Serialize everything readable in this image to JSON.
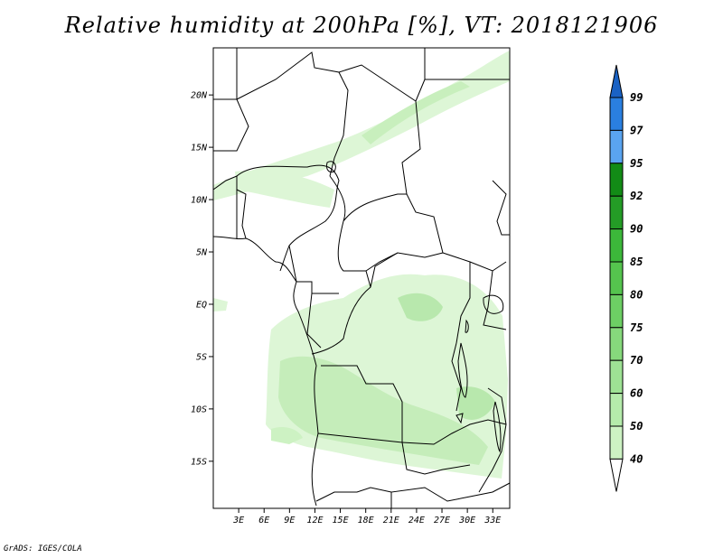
{
  "title": "Relative humidity at 200hPa [%], VT: 2018121906",
  "credit": "GrADS: IGES/COLA",
  "map": {
    "lat_labels": [
      "20N",
      "15N",
      "10N",
      "5N",
      "EQ",
      "5S",
      "10S",
      "15S"
    ],
    "lat_values": [
      20,
      15,
      10,
      5,
      0,
      -5,
      -10,
      -15
    ],
    "lon_labels": [
      "3E",
      "6E",
      "9E",
      "12E",
      "15E",
      "18E",
      "21E",
      "24E",
      "27E",
      "30E",
      "33E"
    ],
    "lon_values": [
      3,
      6,
      9,
      12,
      15,
      18,
      21,
      24,
      27,
      30,
      33
    ],
    "lat_range": [
      -19.5,
      24.5
    ],
    "lon_range": [
      0,
      35
    ]
  },
  "colorbar": {
    "levels": [
      "40",
      "50",
      "60",
      "70",
      "75",
      "80",
      "85",
      "90",
      "92",
      "95",
      "97",
      "99"
    ],
    "colors": [
      "#e6f8e0",
      "#cdf2c3",
      "#b5ebab",
      "#9ee294",
      "#86d97c",
      "#6dcf64",
      "#55c44e",
      "#3cb83a",
      "#249c26",
      "#128b16",
      "#5aa4f0",
      "#2a7fe0",
      "#1a62c4"
    ]
  }
}
